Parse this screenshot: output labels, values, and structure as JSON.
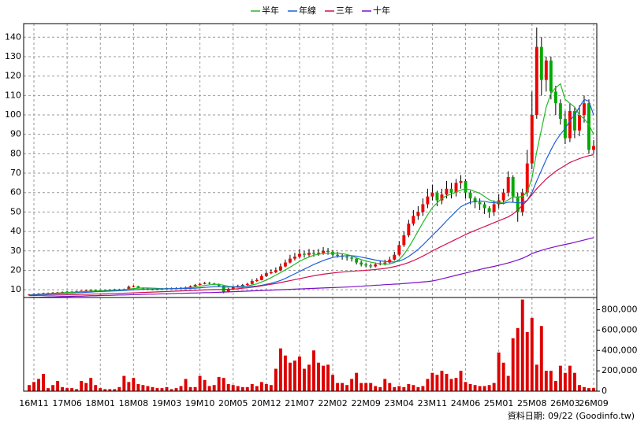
{
  "chart_data": [
    {
      "type": "candlestick",
      "categories": [
        null,
        "16M11",
        null,
        null,
        null,
        null,
        null,
        null,
        "17M06",
        null,
        null,
        null,
        null,
        null,
        null,
        "18M01",
        null,
        null,
        null,
        null,
        null,
        null,
        "18M08",
        null,
        null,
        null,
        null,
        null,
        null,
        "19M03",
        null,
        null,
        null,
        null,
        null,
        null,
        "19M10",
        null,
        null,
        null,
        null,
        null,
        null,
        "20M05",
        null,
        null,
        null,
        null,
        null,
        null,
        "20M12",
        null,
        null,
        null,
        null,
        null,
        null,
        "21M07",
        null,
        null,
        null,
        null,
        null,
        null,
        "22M02",
        null,
        null,
        null,
        null,
        null,
        null,
        "22M09",
        null,
        null,
        null,
        null,
        null,
        null,
        "23M04",
        null,
        null,
        null,
        null,
        null,
        null,
        "23M11",
        null,
        null,
        null,
        null,
        null,
        null,
        "24M06",
        null,
        null,
        null,
        null,
        null,
        null,
        "25M01",
        null,
        null,
        null,
        null,
        null,
        null,
        "25M08",
        null,
        null,
        null,
        null,
        null,
        null,
        "26M03",
        null,
        null,
        null,
        null,
        null,
        "26M09"
      ],
      "open": [
        7.2,
        7.5,
        7.8,
        8,
        8.2,
        8.3,
        8.5,
        8.6,
        8.8,
        9,
        8.9,
        9.2,
        9.4,
        9.6,
        9.8,
        9.7,
        9.5,
        9.8,
        10,
        10.2,
        10,
        10.3,
        11.5,
        11.8,
        11,
        10.5,
        10.2,
        10,
        10.3,
        10.5,
        10.8,
        10.6,
        10.9,
        11,
        11.2,
        11.8,
        12.5,
        13,
        13.5,
        13.2,
        12.8,
        12,
        9,
        10.5,
        11.5,
        12,
        12.5,
        13,
        14.5,
        15,
        17,
        18.5,
        19,
        20,
        22,
        24,
        26,
        27,
        28.5,
        28,
        29,
        28.5,
        29,
        30,
        29.5,
        28,
        27.5,
        27,
        26.5,
        26,
        24,
        23,
        22.5,
        22,
        23,
        23.5,
        24,
        25.5,
        28,
        33,
        38,
        44,
        48,
        50,
        54,
        58,
        60,
        56,
        59,
        62,
        60,
        65,
        66,
        60,
        57,
        55,
        54,
        52,
        50,
        54,
        56,
        60,
        68,
        58,
        50,
        60,
        75,
        100,
        135,
        118,
        128,
        112,
        106,
        98,
        88,
        102,
        92,
        100,
        106,
        82
      ],
      "high": [
        7.8,
        8.1,
        8.3,
        8.5,
        8.6,
        8.8,
        8.9,
        9.1,
        9.3,
        9.3,
        9.5,
        9.7,
        9.9,
        10.1,
        10.1,
        9.9,
        10.1,
        10.3,
        10.5,
        10.5,
        10.6,
        12.2,
        12.3,
        12,
        11.2,
        10.8,
        10.5,
        10.6,
        10.8,
        11.1,
        11.1,
        11.2,
        11.4,
        11.6,
        12.2,
        13,
        13.6,
        14,
        14,
        13.6,
        13.2,
        12.3,
        11,
        12,
        12.6,
        13,
        13.6,
        15.5,
        16,
        18,
        19.5,
        20.5,
        21.5,
        23.5,
        25.5,
        28,
        29,
        31,
        30,
        31,
        30.5,
        31,
        32,
        31.5,
        30.5,
        29.5,
        28.5,
        28,
        27.5,
        26.5,
        25,
        24,
        23.5,
        24,
        25,
        25.5,
        27,
        29.5,
        35,
        40,
        46,
        51,
        53,
        57,
        62,
        64,
        61,
        62,
        66,
        65,
        67,
        69,
        67,
        61,
        58,
        57,
        55,
        53,
        56,
        59,
        62,
        71,
        69,
        60,
        62,
        82,
        112,
        145,
        140,
        130,
        130,
        115,
        108,
        102,
        106,
        104,
        105,
        110,
        108,
        87
      ],
      "low": [
        7.0,
        7.3,
        7.6,
        7.8,
        8.0,
        8.1,
        8.2,
        8.4,
        8.6,
        8.6,
        8.7,
        9.0,
        9.2,
        9.4,
        9.4,
        9.2,
        9.3,
        9.6,
        9.8,
        9.8,
        9.8,
        10.1,
        11.2,
        10.8,
        10.2,
        9.9,
        9.7,
        9.8,
        10.1,
        10.3,
        10.3,
        10.4,
        10.7,
        10.8,
        11,
        11.6,
        12.2,
        12.8,
        12.8,
        12.4,
        11.5,
        8.2,
        8.8,
        10.2,
        11.2,
        11.7,
        12.2,
        12.8,
        14,
        14.8,
        16.5,
        18,
        18.5,
        19.5,
        21.5,
        23.5,
        25,
        26,
        26.5,
        27,
        27,
        27.5,
        28,
        28,
        27,
        26.5,
        25.5,
        25,
        24.5,
        23,
        22,
        21.5,
        21,
        21.5,
        22.5,
        22.5,
        23.5,
        25,
        27.5,
        32,
        37,
        43,
        46,
        48,
        52,
        56,
        53,
        54,
        57,
        57,
        58,
        62,
        57,
        54,
        52,
        51,
        49,
        47,
        48,
        52,
        54,
        58,
        55,
        45,
        48,
        58,
        72,
        98,
        110,
        112,
        108,
        100,
        95,
        85,
        86,
        88,
        89,
        96,
        80,
        80
      ],
      "close": [
        7.5,
        7.8,
        8,
        8.2,
        8.3,
        8.5,
        8.6,
        8.8,
        9,
        8.9,
        9.2,
        9.4,
        9.6,
        9.8,
        9.7,
        9.5,
        9.8,
        10,
        10.2,
        10,
        10.3,
        11.5,
        11.8,
        11,
        10.5,
        10.2,
        10,
        10.3,
        10.5,
        10.8,
        10.6,
        10.9,
        11,
        11.2,
        11.8,
        12.5,
        13,
        13.5,
        13.2,
        12.8,
        12,
        9,
        10.5,
        11.5,
        12,
        12.5,
        13,
        14.5,
        15,
        17,
        18.5,
        19,
        20,
        22,
        24,
        26,
        27,
        28.5,
        28,
        29,
        28.5,
        29,
        30,
        29.5,
        28,
        27.5,
        27,
        26.5,
        26,
        24,
        23,
        22.5,
        22,
        23,
        23.5,
        24,
        25.5,
        28,
        33,
        38,
        44,
        48,
        50,
        54,
        58,
        60,
        56,
        59,
        62,
        60,
        65,
        66,
        60,
        57,
        55,
        54,
        52,
        50,
        54,
        56,
        60,
        68,
        58,
        50,
        60,
        75,
        100,
        135,
        118,
        128,
        112,
        106,
        98,
        88,
        102,
        92,
        100,
        106,
        82,
        84
      ],
      "up_color": "#ee0000",
      "down_color": "#00aa00",
      "series": [
        {
          "name": "半年",
          "color": "#22bb22",
          "values": [
            7.4,
            7.5,
            7.7,
            7.8,
            8.0,
            8.1,
            8.3,
            8.4,
            8.6,
            8.7,
            8.8,
            9.0,
            9.1,
            9.3,
            9.4,
            9.5,
            9.6,
            9.7,
            9.8,
            9.9,
            10.0,
            10.3,
            10.6,
            10.8,
            10.9,
            10.9,
            10.8,
            10.7,
            10.5,
            10.5,
            10.5,
            10.6,
            10.7,
            10.9,
            11.1,
            11.4,
            11.8,
            12.2,
            12.5,
            12.8,
            12.8,
            12.3,
            11.8,
            11.5,
            11.2,
            11.2,
            12.0,
            12.5,
            13.0,
            14.0,
            15.0,
            16.2,
            17.5,
            18.8,
            20.2,
            21.6,
            23.1,
            24.6,
            25.9,
            26.8,
            27.8,
            28.2,
            28.7,
            28.8,
            28.8,
            28.8,
            28.6,
            28.1,
            27.4,
            26.4,
            25.5,
            24.8,
            24.2,
            23.7,
            23.4,
            23.1,
            23.3,
            24.0,
            25.6,
            28.2,
            31.8,
            35.9,
            40.2,
            44.5,
            48.5,
            52.3,
            54.7,
            57.0,
            58.4,
            59.2,
            60.3,
            61.3,
            62.0,
            61.5,
            60.5,
            59.6,
            58.0,
            56.3,
            55.4,
            55.0,
            54.9,
            56.3,
            57.7,
            57.7,
            58.0,
            60.3,
            67.5,
            81.0,
            92.5,
            104.0,
            111.0,
            114.0,
            116.0,
            108.0,
            106.0,
            104.0,
            100.0,
            98.0,
            95.0,
            90.0
          ]
        },
        {
          "name": "年線",
          "color": "#1f5fdc",
          "values": [
            7.3,
            7.4,
            7.5,
            7.6,
            7.7,
            7.8,
            7.9,
            8.0,
            8.1,
            8.2,
            8.4,
            8.5,
            8.7,
            8.8,
            9.0,
            9.1,
            9.2,
            9.3,
            9.4,
            9.5,
            9.6,
            9.8,
            10.0,
            10.1,
            10.2,
            10.3,
            10.3,
            10.4,
            10.4,
            10.5,
            10.5,
            10.6,
            10.6,
            10.6,
            10.7,
            10.8,
            11.0,
            11.2,
            11.4,
            11.5,
            11.6,
            11.4,
            11.4,
            11.5,
            11.6,
            11.7,
            11.7,
            11.8,
            11.9,
            12.3,
            12.8,
            13.3,
            14.0,
            14.8,
            15.8,
            17.0,
            18.2,
            19.4,
            20.6,
            21.8,
            23.0,
            24.0,
            25.0,
            25.9,
            26.6,
            27.1,
            27.4,
            27.5,
            27.5,
            27.3,
            26.8,
            26.3,
            25.8,
            25.3,
            24.9,
            24.5,
            24.3,
            24.3,
            24.8,
            25.7,
            27.1,
            28.9,
            30.8,
            33.0,
            35.5,
            38.0,
            40.3,
            42.8,
            45.5,
            47.9,
            50.4,
            52.7,
            54.0,
            55.0,
            55.4,
            55.7,
            55.5,
            55.0,
            54.8,
            54.5,
            54.4,
            55.1,
            55.0,
            54.7,
            54.8,
            56.0,
            60.0,
            66.0,
            71.5,
            77.0,
            82.0,
            86.5,
            90.0,
            93.0,
            97.0,
            100.0,
            104.0,
            108.0,
            107.0,
            100.0
          ]
        },
        {
          "name": "三年",
          "color": "#d0104c",
          "values": [
            7.0,
            7.0,
            7.1,
            7.1,
            7.2,
            7.2,
            7.3,
            7.3,
            7.4,
            7.4,
            7.5,
            7.6,
            7.6,
            7.7,
            7.8,
            7.8,
            7.9,
            8.0,
            8.0,
            8.1,
            8.2,
            8.3,
            8.4,
            8.5,
            8.6,
            8.7,
            8.8,
            8.9,
            9.0,
            9.1,
            9.2,
            9.3,
            9.4,
            9.5,
            9.6,
            9.7,
            9.8,
            9.9,
            10.0,
            10.1,
            10.1,
            10.1,
            10.2,
            10.3,
            10.5,
            10.8,
            11.0,
            11.3,
            11.6,
            12.0,
            12.4,
            12.8,
            13.2,
            13.7,
            14.2,
            14.7,
            15.2,
            15.7,
            16.2,
            16.7,
            17.2,
            17.6,
            18.0,
            18.3,
            18.6,
            18.9,
            19.1,
            19.3,
            19.5,
            19.7,
            19.8,
            20.0,
            20.2,
            20.4,
            20.7,
            21.0,
            21.4,
            21.9,
            22.5,
            23.2,
            24.0,
            25.0,
            26.1,
            27.3,
            28.6,
            30.0,
            31.2,
            32.4,
            33.6,
            34.8,
            36.0,
            37.2,
            38.4,
            39.5,
            40.5,
            41.5,
            42.5,
            43.5,
            44.5,
            45.5,
            46.5,
            47.5,
            49,
            51,
            53.5,
            56,
            59,
            62,
            64.5,
            67,
            69,
            71,
            72.5,
            74,
            75.5,
            76.5,
            77.5,
            78.3,
            79,
            79.5
          ]
        },
        {
          "name": "十年",
          "color": "#7a10c8",
          "values": [
            6.0,
            6.1,
            6.1,
            6.2,
            6.3,
            6.3,
            6.4,
            6.5,
            6.5,
            6.6,
            6.7,
            6.7,
            6.8,
            6.9,
            6.9,
            7.0,
            7.1,
            7.1,
            7.2,
            7.3,
            7.3,
            7.4,
            7.5,
            7.5,
            7.6,
            7.7,
            7.7,
            7.8,
            7.9,
            7.9,
            8.0,
            8.1,
            8.1,
            8.2,
            8.3,
            8.3,
            8.4,
            8.5,
            8.5,
            8.6,
            8.7,
            8.8,
            8.9,
            9.0,
            9.1,
            9.2,
            9.3,
            9.4,
            9.5,
            9.6,
            9.7,
            9.8,
            9.9,
            10.0,
            10.1,
            10.2,
            10.3,
            10.4,
            10.5,
            10.6,
            10.7,
            10.8,
            10.9,
            11.0,
            11.1,
            11.2,
            11.3,
            11.4,
            11.5,
            11.7,
            11.8,
            12.0,
            12.1,
            12.3,
            12.4,
            12.6,
            12.7,
            12.9,
            13.0,
            13.2,
            13.4,
            13.6,
            13.8,
            14.0,
            14.2,
            14.5,
            15.0,
            15.6,
            16.2,
            16.8,
            17.4,
            18.0,
            18.6,
            19.2,
            19.8,
            20.4,
            21.0,
            21.5,
            22.0,
            22.6,
            23.2,
            23.8,
            24.5,
            25.3,
            26.2,
            27.3,
            28.6,
            29.5,
            30.3,
            31.0,
            31.6,
            32.2,
            32.8,
            33.3,
            33.8,
            34.4,
            35.0,
            35.6,
            36.2,
            36.8
          ]
        }
      ],
      "ylim": [
        6,
        147
      ],
      "yticks": [
        10,
        20,
        30,
        40,
        50,
        60,
        70,
        80,
        90,
        100,
        110,
        120,
        130,
        140
      ],
      "grid": true,
      "legend": "top"
    },
    {
      "type": "bar",
      "values": [
        60000,
        90000,
        120000,
        170000,
        30000,
        60000,
        100000,
        40000,
        30000,
        30000,
        20000,
        100000,
        80000,
        130000,
        60000,
        30000,
        20000,
        20000,
        20000,
        40000,
        150000,
        90000,
        130000,
        70000,
        60000,
        50000,
        40000,
        30000,
        30000,
        40000,
        20000,
        30000,
        50000,
        120000,
        40000,
        40000,
        150000,
        110000,
        50000,
        60000,
        140000,
        130000,
        70000,
        60000,
        50000,
        40000,
        40000,
        70000,
        50000,
        90000,
        70000,
        60000,
        220000,
        420000,
        350000,
        280000,
        300000,
        340000,
        220000,
        260000,
        400000,
        280000,
        250000,
        260000,
        160000,
        80000,
        80000,
        60000,
        120000,
        180000,
        80000,
        80000,
        80000,
        50000,
        40000,
        120000,
        80000,
        40000,
        50000,
        40000,
        70000,
        60000,
        40000,
        50000,
        120000,
        180000,
        160000,
        200000,
        170000,
        120000,
        130000,
        200000,
        90000,
        70000,
        60000,
        50000,
        50000,
        60000,
        80000,
        380000,
        280000,
        150000,
        520000,
        620000,
        900000,
        580000,
        720000,
        260000,
        640000,
        200000,
        200000,
        100000,
        250000,
        180000,
        250000,
        180000,
        60000,
        40000,
        30000,
        30000
      ],
      "color": "#dd0000",
      "ylim": [
        0,
        920000
      ],
      "yticks": [
        0,
        {
          "value": 200000,
          "label": "200,000"
        },
        {
          "value": 400000,
          "label": "400,000"
        },
        {
          "value": 600000,
          "label": "600,000"
        },
        {
          "value": 800000,
          "label": "800,000"
        }
      ],
      "grid": false
    }
  ],
  "footnote": "資料日期: 09/22 (Goodinfo.tw)"
}
